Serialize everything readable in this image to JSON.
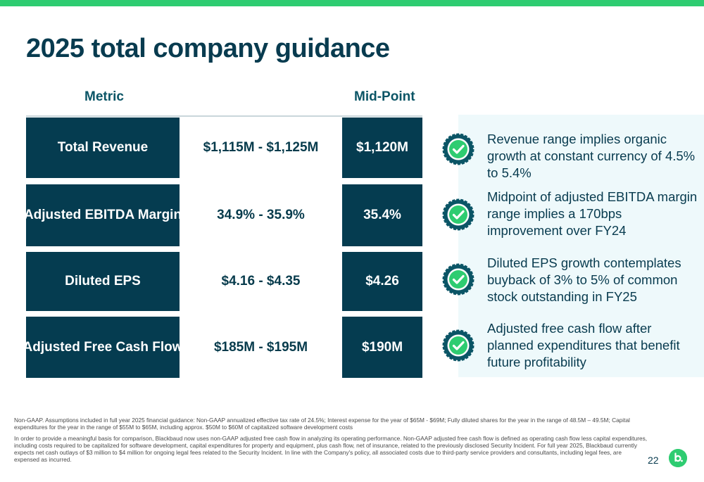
{
  "slide": {
    "title": "2025 total company guidance",
    "page_number": "22"
  },
  "table": {
    "headers": {
      "metric": "Metric",
      "midpoint": "Mid-Point"
    },
    "rows": [
      {
        "metric": "Total Revenue",
        "range": "$1,115M - $1,125M",
        "midpoint": "$1,120M"
      },
      {
        "metric": "Adjusted EBITDA Margin",
        "range": "34.9% - 35.9%",
        "midpoint": "35.4%"
      },
      {
        "metric": "Diluted EPS",
        "range": "$4.16 - $4.35",
        "midpoint": "$4.26"
      },
      {
        "metric": "Adjusted Free Cash Flow",
        "range": "$185M - $195M",
        "midpoint": "$190M"
      }
    ]
  },
  "highlights": [
    {
      "text": "Revenue range implies organic growth at constant currency of 4.5% to 5.4%",
      "icon": "check-badge-icon"
    },
    {
      "text": "Midpoint of adjusted EBITDA margin range implies a 170bps improvement over FY24",
      "icon": "check-badge-icon"
    },
    {
      "text": "Diluted EPS growth contemplates buyback of 3% to 5% of common stock outstanding in FY25",
      "icon": "check-badge-icon"
    },
    {
      "text": "Adjusted free cash flow after planned expenditures that benefit future profitability",
      "icon": "check-badge-icon"
    }
  ],
  "footnotes": [
    "Non-GAAP. Assumptions included in full year 2025 financial guidance: Non-GAAP annualized effective tax rate of 24.5%; Interest expense for the year of $65M - $69M; Fully diluted shares for the year in the range of 48.5M – 49.5M; Capital expenditures for the year in the range of $55M to $65M, including approx. $50M to $60M of capitalized software development costs",
    "In order to provide a meaningful basis for comparison, Blackbaud now uses non-GAAP adjusted free cash flow in analyzing its operating performance. Non-GAAP adjusted free cash flow is defined as operating cash flow less capital expenditures, including costs required to be capitalized for software development, capital expenditures for property and equipment, plus cash flow, net of insurance, related to the previously disclosed Security Incident. For full year 2025, Blackbaud currently expects net cash outlays of $3 million to $4 million for ongoing legal fees related to the Security Incident.  In line with the Company's policy, all associated costs due to third-party service providers and consultants, including legal fees, are expensed as incurred."
  ],
  "colors": {
    "accent_green": "#2ecc71",
    "navy": "#053c50",
    "panel_bg": "#eef9fb",
    "badge": "#0b5566"
  }
}
